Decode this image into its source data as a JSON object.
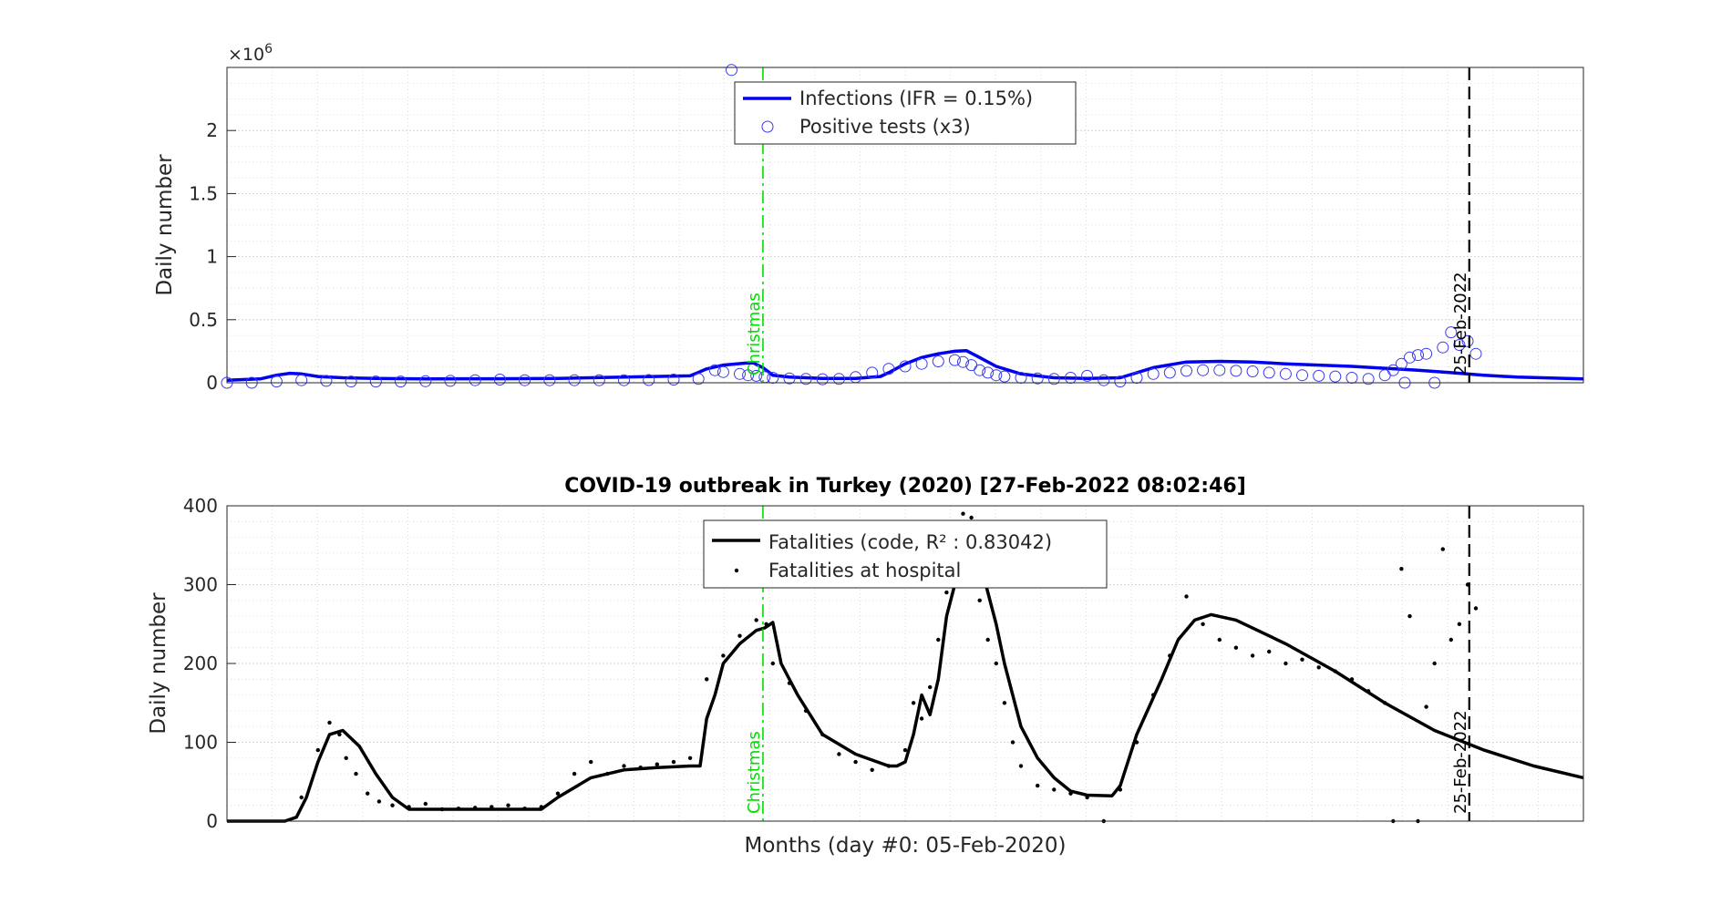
{
  "xlabel": "Months (day #0: 05-Feb-2020)",
  "chart_data": [
    {
      "type": "line",
      "title": "",
      "xlabel": "",
      "ylabel": "Daily number",
      "y_exponent_label": "×10",
      "y_exponent": "6",
      "xlim": [
        0,
        820
      ],
      "ylim": [
        0,
        2500000
      ],
      "yticks": [
        0,
        500000,
        1000000,
        1500000,
        2000000
      ],
      "ytick_labels": [
        "0",
        "0.5",
        "1",
        "1.5",
        "2"
      ],
      "grid": true,
      "legend_position": "top-center",
      "vlines": [
        {
          "x": 324,
          "label": "Christmas",
          "color": "#00dd00",
          "style": "dash-dot"
        },
        {
          "x": 751,
          "label": "25-Feb-2022",
          "color": "#000000",
          "style": "dashed"
        }
      ],
      "series": [
        {
          "name": "Infections (IFR = 0.15%)",
          "kind": "line",
          "color": "#0000ee",
          "x": [
            0,
            20,
            30,
            38,
            45,
            55,
            70,
            90,
            120,
            160,
            200,
            240,
            280,
            290,
            300,
            313,
            318,
            324,
            330,
            340,
            360,
            380,
            395,
            400,
            410,
            420,
            430,
            440,
            447,
            455,
            465,
            480,
            500,
            520,
            540,
            560,
            580,
            600,
            620,
            640,
            660,
            680,
            700,
            720,
            740,
            760,
            780,
            800,
            820
          ],
          "y": [
            20000,
            30000,
            60000,
            75000,
            70000,
            50000,
            40000,
            35000,
            30000,
            32000,
            35000,
            45000,
            55000,
            110000,
            140000,
            155000,
            158000,
            120000,
            60000,
            45000,
            35000,
            35000,
            50000,
            80000,
            150000,
            200000,
            230000,
            250000,
            255000,
            200000,
            130000,
            70000,
            40000,
            35000,
            40000,
            120000,
            165000,
            170000,
            165000,
            150000,
            140000,
            130000,
            115000,
            100000,
            80000,
            60000,
            45000,
            38000,
            30000
          ]
        },
        {
          "name": "Positive tests (x3)",
          "kind": "scatter",
          "color": "#0000ee",
          "x": [
            0,
            15,
            30,
            45,
            60,
            75,
            90,
            105,
            120,
            135,
            150,
            165,
            180,
            195,
            210,
            225,
            240,
            255,
            270,
            285,
            295,
            300,
            305,
            310,
            315,
            320,
            325,
            330,
            340,
            350,
            360,
            370,
            380,
            390,
            400,
            410,
            420,
            430,
            440,
            445,
            450,
            455,
            460,
            465,
            470,
            480,
            490,
            500,
            510,
            520,
            530,
            540,
            550,
            560,
            570,
            580,
            590,
            600,
            610,
            620,
            630,
            640,
            650,
            660,
            670,
            680,
            690,
            700,
            705,
            710,
            712,
            715,
            720,
            725,
            730,
            735,
            740,
            745,
            750,
            755
          ],
          "y": [
            0,
            0,
            10000,
            20000,
            15000,
            10000,
            10000,
            10000,
            12000,
            15000,
            20000,
            25000,
            20000,
            20000,
            20000,
            20000,
            20000,
            22000,
            25000,
            30000,
            100000,
            85000,
            2480000,
            70000,
            60000,
            55000,
            45000,
            40000,
            35000,
            30000,
            28000,
            30000,
            45000,
            80000,
            110000,
            130000,
            150000,
            170000,
            180000,
            165000,
            140000,
            100000,
            80000,
            60000,
            50000,
            40000,
            35000,
            30000,
            40000,
            55000,
            20000,
            10000,
            40000,
            70000,
            80000,
            95000,
            100000,
            100000,
            95000,
            90000,
            80000,
            70000,
            60000,
            55000,
            50000,
            40000,
            30000,
            60000,
            100000,
            150000,
            0,
            200000,
            220000,
            230000,
            0,
            280000,
            400000,
            300000,
            330000,
            230000
          ]
        }
      ]
    },
    {
      "type": "line",
      "title": "COVID-19 outbreak in Turkey (2020) [27-Feb-2022 08:02:46]",
      "xlabel": "Months (day #0: 05-Feb-2020)",
      "ylabel": "Daily number",
      "xlim": [
        0,
        820
      ],
      "ylim": [
        0,
        400
      ],
      "yticks": [
        0,
        100,
        200,
        300,
        400
      ],
      "ytick_labels": [
        "0",
        "100",
        "200",
        "300",
        "400"
      ],
      "grid": true,
      "legend_position": "top-center",
      "vlines": [
        {
          "x": 324,
          "label": "Christmas",
          "color": "#00dd00",
          "style": "dash-dot"
        },
        {
          "x": 751,
          "label": "25-Feb-2022",
          "color": "#000000",
          "style": "dashed"
        }
      ],
      "series": [
        {
          "name": "Fatalities (code, R² : 0.83042)",
          "kind": "line",
          "color": "#000000",
          "x": [
            0,
            35,
            42,
            48,
            55,
            62,
            70,
            80,
            90,
            100,
            110,
            130,
            160,
            190,
            200,
            220,
            240,
            260,
            280,
            286,
            290,
            295,
            300,
            310,
            320,
            325,
            330,
            335,
            345,
            360,
            380,
            400,
            405,
            410,
            415,
            420,
            425,
            430,
            435,
            440,
            445,
            450,
            455,
            460,
            465,
            470,
            480,
            490,
            500,
            510,
            520,
            535,
            540,
            550,
            565,
            575,
            585,
            595,
            610,
            640,
            670,
            700,
            730,
            760,
            790,
            820
          ],
          "y": [
            0,
            0,
            5,
            30,
            75,
            110,
            115,
            95,
            60,
            30,
            15,
            15,
            15,
            15,
            30,
            55,
            65,
            68,
            70,
            70,
            130,
            160,
            200,
            225,
            242,
            245,
            252,
            200,
            160,
            110,
            85,
            70,
            70,
            75,
            110,
            160,
            135,
            180,
            260,
            300,
            330,
            340,
            330,
            290,
            250,
            200,
            120,
            80,
            55,
            38,
            33,
            32,
            45,
            110,
            180,
            230,
            255,
            262,
            255,
            225,
            190,
            150,
            115,
            90,
            70,
            55
          ]
        },
        {
          "name": "Fatalities at hospital",
          "kind": "scatter",
          "color": "#000000",
          "x": [
            45,
            55,
            62,
            68,
            72,
            78,
            85,
            92,
            100,
            110,
            120,
            130,
            140,
            150,
            160,
            170,
            180,
            190,
            200,
            210,
            220,
            230,
            240,
            250,
            260,
            270,
            280,
            290,
            300,
            310,
            320,
            326,
            330,
            340,
            350,
            360,
            370,
            380,
            390,
            400,
            410,
            415,
            420,
            425,
            430,
            435,
            440,
            445,
            450,
            455,
            460,
            465,
            470,
            475,
            480,
            490,
            500,
            510,
            520,
            530,
            540,
            550,
            560,
            570,
            580,
            590,
            600,
            610,
            620,
            630,
            640,
            650,
            660,
            670,
            680,
            690,
            700,
            705,
            710,
            715,
            720,
            725,
            730,
            735,
            740,
            745,
            750,
            755
          ],
          "y": [
            30,
            90,
            125,
            110,
            80,
            60,
            35,
            25,
            20,
            18,
            22,
            15,
            16,
            17,
            18,
            20,
            16,
            18,
            35,
            60,
            75,
            60,
            70,
            68,
            72,
            75,
            80,
            180,
            210,
            235,
            255,
            250,
            200,
            175,
            140,
            110,
            85,
            75,
            65,
            70,
            90,
            150,
            130,
            170,
            230,
            290,
            350,
            390,
            385,
            280,
            230,
            200,
            150,
            100,
            70,
            45,
            40,
            35,
            30,
            0,
            40,
            100,
            160,
            210,
            285,
            250,
            230,
            220,
            210,
            215,
            200,
            205,
            195,
            190,
            180,
            165,
            150,
            0,
            320,
            260,
            0,
            145,
            200,
            345,
            230,
            250,
            300,
            270
          ]
        }
      ]
    }
  ]
}
